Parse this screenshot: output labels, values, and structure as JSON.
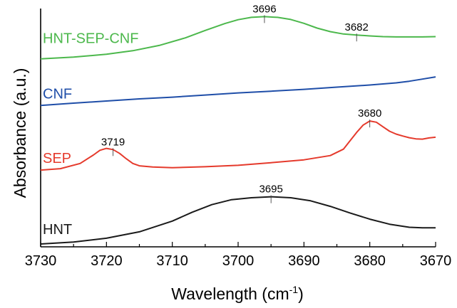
{
  "chart_data": {
    "type": "line",
    "title": "",
    "xlabel": "Wavelength",
    "xlabel_unit_base": "cm",
    "xlabel_unit_exp": "-1",
    "ylabel": "Absorbance (a.u.)",
    "xlim": [
      3730,
      3670
    ],
    "x_reversed": true,
    "x_ticks": [
      3730,
      3720,
      3710,
      3700,
      3690,
      3680,
      3670
    ],
    "x_tick_labels": [
      "3730",
      "3720",
      "3710",
      "3700",
      "3690",
      "3680",
      "3670"
    ],
    "ylim": [
      0,
      100
    ],
    "y_ticks_shown": false,
    "grid": false,
    "legend": "none",
    "series": [
      {
        "name": "HNT-SEP-CNF",
        "color": "#4cb84c",
        "x": [
          3730,
          3725,
          3720,
          3716,
          3712,
          3708,
          3705,
          3702,
          3700,
          3698,
          3696,
          3694,
          3692,
          3690,
          3688,
          3686,
          3684,
          3682,
          3680,
          3678,
          3676,
          3674,
          3672,
          3670
        ],
        "y": [
          78.9,
          79.6,
          80.8,
          82.3,
          84.5,
          87.7,
          90.8,
          93.7,
          95.3,
          96.3,
          96.6,
          96.3,
          95.4,
          93.8,
          91.8,
          90.3,
          89.3,
          88.9,
          88.5,
          88.2,
          88.1,
          88.1,
          88.1,
          88.2
        ]
      },
      {
        "name": "CNF",
        "color": "#1f4ea8",
        "x": [
          3730,
          3725,
          3720,
          3715,
          3710,
          3705,
          3700,
          3695,
          3690,
          3685,
          3680,
          3676,
          3674,
          3672,
          3670
        ],
        "y": [
          59.3,
          60.3,
          61.2,
          62.1,
          62.8,
          63.7,
          64.6,
          65.3,
          66.1,
          67.0,
          67.9,
          68.8,
          69.5,
          70.4,
          71.3
        ]
      },
      {
        "name": "SEP",
        "color": "#e53a2c",
        "x": [
          3730,
          3727,
          3724,
          3722,
          3721,
          3720,
          3719,
          3718,
          3717,
          3716,
          3715,
          3713,
          3710,
          3705,
          3700,
          3695,
          3690,
          3686,
          3684,
          3683,
          3682,
          3681,
          3680,
          3679,
          3678,
          3677,
          3676,
          3675,
          3674,
          3673,
          3672,
          3671,
          3670
        ],
        "y": [
          32.2,
          32.8,
          35.0,
          38.5,
          40.5,
          41.3,
          40.8,
          39.2,
          37.0,
          35.0,
          34.0,
          33.5,
          33.2,
          33.6,
          34.2,
          35.3,
          36.5,
          38.3,
          41.0,
          44.5,
          48.0,
          51.1,
          52.8,
          52.3,
          50.4,
          48.5,
          47.3,
          46.5,
          45.8,
          45.3,
          45.2,
          45.7,
          46.0
        ]
      },
      {
        "name": "HNT",
        "color": "#1a1a1a",
        "x": [
          3730,
          3725,
          3720,
          3715,
          3710,
          3707,
          3704,
          3701,
          3698,
          3695,
          3692,
          3689,
          3686,
          3683,
          3680,
          3677,
          3674,
          3672,
          3670
        ],
        "y": [
          1.2,
          2.0,
          3.6,
          6.3,
          10.8,
          14.5,
          17.7,
          19.8,
          20.6,
          21.0,
          20.6,
          19.3,
          17.0,
          14.2,
          11.6,
          9.5,
          8.2,
          8.0,
          8.0
        ]
      }
    ],
    "series_labels": [
      {
        "text": "HNT-SEP-CNF",
        "color": "#4cb84c"
      },
      {
        "text": "CNF",
        "color": "#1f4ea8"
      },
      {
        "text": "SEP",
        "color": "#e53a2c"
      },
      {
        "text": "HNT",
        "color": "#1a1a1a"
      }
    ],
    "annotations": [
      {
        "text": "3696",
        "x": 3696,
        "y": 96.6
      },
      {
        "text": "3682",
        "x": 3682,
        "y": 88.9
      },
      {
        "text": "3719",
        "x": 3719,
        "y": 40.8
      },
      {
        "text": "3680",
        "x": 3680,
        "y": 52.8
      },
      {
        "text": "3695",
        "x": 3695,
        "y": 21.0
      }
    ]
  }
}
